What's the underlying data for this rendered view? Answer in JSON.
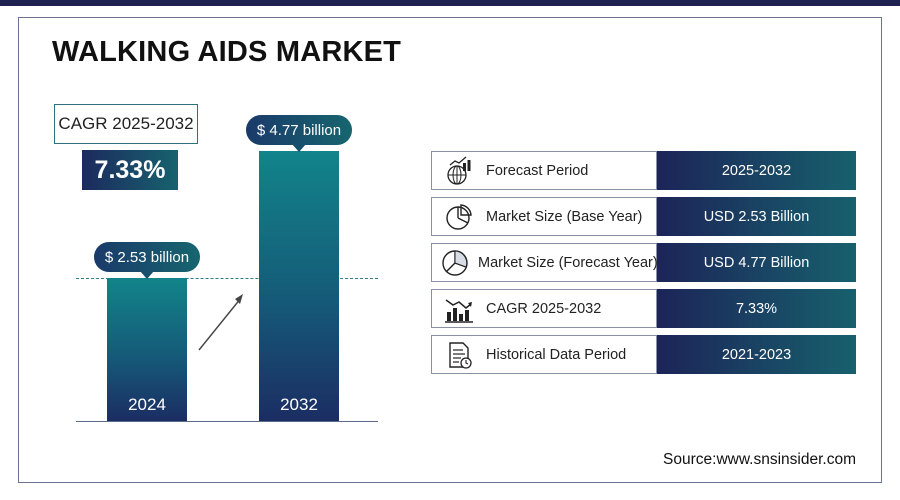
{
  "title": "WALKING AIDS MARKET",
  "cagr_box": {
    "label": "CAGR 2025-2032",
    "value": "7.33%"
  },
  "chart_data": {
    "type": "bar",
    "categories": [
      "2024",
      "2032"
    ],
    "values": [
      2.53,
      4.77
    ],
    "value_labels": [
      "$ 2.53 billion",
      "$ 4.77 billion"
    ],
    "unit": "billion USD"
  },
  "table": {
    "rows": [
      {
        "label": "Forecast Period",
        "value": "2025-2032",
        "icon": "forecast-chart-icon"
      },
      {
        "label": "Market Size (Base Year)",
        "value": "USD 2.53 Billion",
        "icon": "pie-chart-icon"
      },
      {
        "label": "Market Size (Forecast Year)",
        "value": "USD 4.77 Billion",
        "icon": "pie-chart-icon"
      },
      {
        "label": "CAGR 2025-2032",
        "value": "7.33%",
        "icon": "bar-chart-trend-icon"
      },
      {
        "label": "Historical Data Period",
        "value": "2021-2023",
        "icon": "document-icon"
      }
    ]
  },
  "source": "Source:www.snsinsider.com",
  "colors": {
    "accent_dark": "#1c2458",
    "accent_teal": "#17606d",
    "title": "#111111"
  }
}
